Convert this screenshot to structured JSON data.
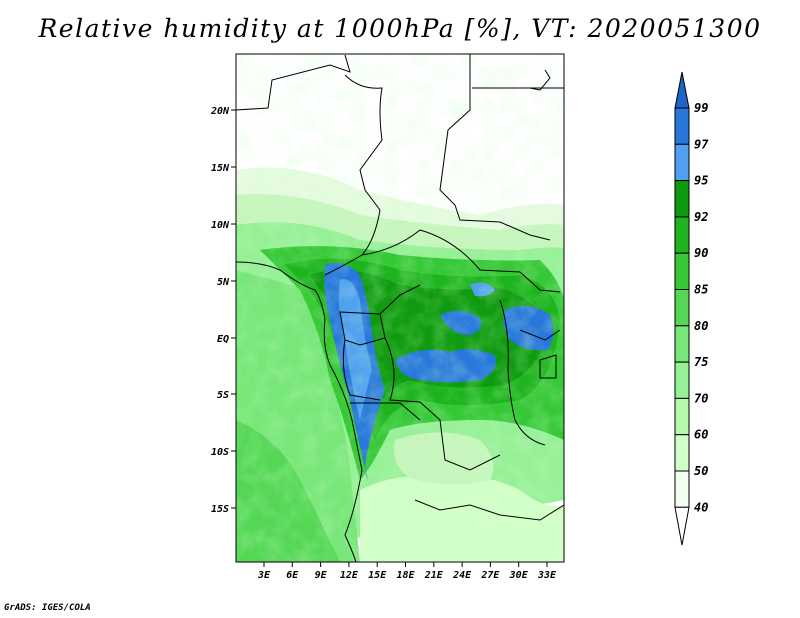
{
  "title": "Relative humidity at 1000hPa [%], VT: 2020051300",
  "credit": "GrADS: IGES/COLA",
  "map": {
    "lat_ticks": [
      "20N",
      "15N",
      "10N",
      "5N",
      "EQ",
      "5S",
      "10S",
      "15S"
    ],
    "lon_ticks": [
      "3E",
      "6E",
      "9E",
      "12E",
      "15E",
      "18E",
      "21E",
      "24E",
      "27E",
      "30E",
      "33E"
    ]
  },
  "colorbar": {
    "levels": [
      "99",
      "97",
      "95",
      "92",
      "90",
      "85",
      "80",
      "75",
      "70",
      "60",
      "50",
      "40"
    ],
    "colors": [
      "#1e64c8",
      "#2878dc",
      "#50a0f0",
      "#0f9b0f",
      "#1eb41e",
      "#37c837",
      "#55d755",
      "#78e678",
      "#96f096",
      "#b4faaa",
      "#d2ffc8",
      "#f0fff0"
    ]
  }
}
